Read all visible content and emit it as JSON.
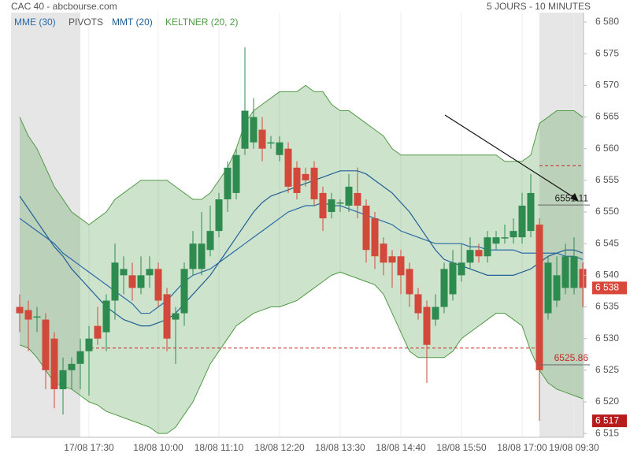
{
  "chart_data": {
    "type": "candlestick",
    "title": "CAC 40 - abcbourse.com",
    "subtitle": "5 JOURS - 10 MINUTES",
    "categories": [
      null,
      null,
      null,
      null,
      null,
      null,
      null,
      null,
      "17/08 17:30",
      null,
      null,
      null,
      null,
      null,
      null,
      null,
      "18/08 10:00",
      null,
      null,
      null,
      null,
      null,
      null,
      "18/08 11:10",
      null,
      null,
      null,
      null,
      null,
      null,
      "18/08 12:20",
      null,
      null,
      null,
      null,
      null,
      null,
      "18/08 13:30",
      null,
      null,
      null,
      null,
      null,
      null,
      "18/08 14:40",
      null,
      null,
      null,
      null,
      null,
      null,
      "18/08 15:50",
      null,
      null,
      null,
      null,
      null,
      null,
      "18/08 17:00",
      null,
      null,
      null,
      null,
      null,
      "19/08 09:30",
      null
    ],
    "open": [
      6535,
      6534.5,
      6533.5,
      6533,
      6530,
      6522,
      6525,
      6526,
      6528,
      6532,
      6531,
      6536,
      6540,
      6540,
      6538,
      6540,
      6541,
      6537,
      6533,
      6534,
      6541,
      6541,
      6544,
      6547,
      6552,
      6553,
      6560,
      6561,
      6563,
      6561,
      6559,
      6560,
      6557,
      6556,
      6557,
      6553,
      6550,
      6551.5,
      6551,
      6553,
      6551,
      6549,
      6545,
      6543,
      6543,
      6541,
      6537,
      6535,
      6533,
      6535,
      6537,
      6540,
      6542,
      6544,
      6543,
      6545,
      6546,
      6546,
      6546,
      6547,
      6548,
      6534,
      6536,
      6538,
      6538,
      6541
    ],
    "high": [
      6537,
      6536,
      6535,
      6534,
      6531,
      6527,
      6527,
      6530,
      6532,
      6535,
      6537,
      6545,
      6543,
      6542,
      6543,
      6543,
      6542,
      6538,
      6535,
      6542,
      6547,
      6550,
      6551,
      6553,
      6558,
      6560,
      6576,
      6568,
      6565,
      6562,
      6562,
      6561,
      6558,
      6557,
      6558,
      6554,
      6553,
      6552,
      6556,
      6557,
      6552,
      6550,
      6546,
      6544,
      6544,
      6542,
      6538,
      6536,
      6537,
      6542,
      6544,
      6545,
      6546,
      6545,
      6547,
      6547,
      6548,
      6549,
      6553,
      6556,
      6549,
      6543,
      6543,
      6545,
      6546,
      6542
    ],
    "low": [
      6531,
      6528,
      6531,
      6522,
      6519,
      6518,
      6522,
      6522,
      6521,
      6529,
      6528,
      6533,
      6537,
      6536,
      6537,
      6538,
      6535,
      6528,
      6526,
      6532,
      6540,
      6540,
      6543,
      6546,
      6550,
      6552,
      6559,
      6560,
      6558,
      6560,
      6558,
      6553,
      6552,
      6554,
      6551,
      6547,
      6549,
      6550,
      6550,
      6549,
      6542,
      6541,
      6540,
      6538,
      6537,
      6535,
      6533,
      6523,
      6532,
      6534,
      6536,
      6539,
      6541,
      6542,
      6542,
      6544,
      6545,
      6545,
      6545,
      6546,
      6517,
      6533,
      6535,
      6537,
      6537,
      6535
    ],
    "close": [
      6534,
      6533,
      6533.5,
      6525,
      6522,
      6525,
      6526,
      6528,
      6530,
      6530,
      6536,
      6542,
      6541,
      6538,
      6540,
      6541,
      6536,
      6530,
      6534,
      6541,
      6545,
      6545,
      6547,
      6552,
      6557,
      6559,
      6566,
      6565,
      6560,
      6561,
      6561,
      6554,
      6553,
      6555,
      6552,
      6549,
      6552,
      6551.5,
      6554,
      6551,
      6544,
      6543,
      6542,
      6542,
      6540,
      6537,
      6534,
      6529,
      6535,
      6541,
      6542,
      6542,
      6544,
      6543,
      6546,
      6546,
      6546,
      6547,
      6551,
      6553,
      6525,
      6542,
      6540,
      6543,
      6543,
      6538
    ],
    "up_color": "#2e8b4f",
    "down_color": "#d2483a",
    "ylim": [
      6514.4,
      6581.5
    ],
    "yticks": [
      {
        "value": 6580,
        "label": "6 580"
      },
      {
        "value": 6575,
        "label": "6 575"
      },
      {
        "value": 6570,
        "label": "6 570"
      },
      {
        "value": 6565,
        "label": "6 565"
      },
      {
        "value": 6560,
        "label": "6 560"
      },
      {
        "value": 6555,
        "label": "6 555"
      },
      {
        "value": 6550,
        "label": "6 550"
      },
      {
        "value": 6545,
        "label": "6 545"
      },
      {
        "value": 6540,
        "label": "6 540"
      },
      {
        "value": 6535,
        "label": "6 535"
      },
      {
        "value": 6530,
        "label": "6 530"
      },
      {
        "value": 6525,
        "label": "6 525"
      },
      {
        "value": 6520,
        "label": "6 520"
      },
      {
        "value": 6515,
        "label": "6 515"
      }
    ],
    "overlays": [
      {
        "name": "MME (30)",
        "color": "#2a6aa8",
        "values": [
          6549,
          6548,
          6547,
          6546,
          6545,
          6543.5,
          6542.5,
          6541.5,
          6540.5,
          6539.5,
          6538.5,
          6537.5,
          6536.5,
          6535.5,
          6534,
          6534,
          6535,
          6536,
          6537.5,
          6539,
          6540,
          6540.5,
          6541,
          6542,
          6543,
          6544,
          6545,
          6546,
          6547,
          6548,
          6549,
          6550,
          6550.5,
          6551,
          6551,
          6551.5,
          6551,
          6551,
          6550.5,
          6550,
          6549.5,
          6549,
          6548.5,
          6548,
          6547,
          6546.5,
          6546,
          6545.5,
          6545,
          6545,
          6545,
          6545,
          6544.5,
          6544.5,
          6544,
          6544,
          6544,
          6544,
          6543.5,
          6543.5,
          6543.5,
          6543.5,
          6543.5,
          6543,
          6543,
          6542.5
        ]
      },
      {
        "name": "MMT (20)",
        "color": "#1f5f96",
        "values": [
          6552.5,
          6550.5,
          6548.5,
          6546.5,
          6544.5,
          6543,
          6541,
          6539.5,
          6538,
          6536.5,
          6535,
          6534,
          6533,
          6532.5,
          6532,
          6532,
          6532.5,
          6533,
          6534,
          6535.5,
          6537,
          6538.5,
          6540,
          6542,
          6544,
          6546,
          6548,
          6550,
          6551.5,
          6552.5,
          6553,
          6553.5,
          6554,
          6554.5,
          6555,
          6555.5,
          6556,
          6556.5,
          6556.5,
          6556.5,
          6556,
          6555,
          6554,
          6553,
          6551.5,
          6550,
          6548,
          6546,
          6544,
          6542.5,
          6542,
          6541.5,
          6541,
          6540.5,
          6540,
          6540,
          6540,
          6540,
          6540.5,
          6541,
          6542,
          6543,
          6543.5,
          6544,
          6544,
          6543.5
        ]
      }
    ],
    "pivots": {
      "name": "PIVOTS",
      "color": "#c62828",
      "levels": [
        6528.5,
        6557.3
      ]
    },
    "keltner": {
      "name": "KELTNER (20, 2)",
      "color": "#4f9a45",
      "upper": [
        6565,
        6562,
        6560,
        6557,
        6554,
        6552,
        6550,
        6549,
        6548,
        6549,
        6550,
        6552,
        6553,
        6554,
        6555,
        6555,
        6555,
        6555,
        6554,
        6553,
        6552,
        6552,
        6553,
        6555,
        6557,
        6560,
        6564,
        6566,
        6567,
        6568,
        6569,
        6569,
        6569,
        6570,
        6569,
        6569,
        6567,
        6566,
        6566,
        6565,
        6564,
        6563,
        6562,
        6560,
        6559,
        6559,
        6559,
        6559,
        6559,
        6559,
        6559,
        6559,
        6559,
        6559,
        6559,
        6559,
        6558,
        6558,
        6558,
        6559,
        6564,
        6565,
        6566,
        6566,
        6566,
        6565
      ],
      "lower": [
        6529,
        6528.5,
        6527,
        6525,
        6523,
        6522.5,
        6522,
        6521,
        6520,
        6519.5,
        6518.5,
        6518,
        6517.5,
        6517,
        6516.5,
        6516,
        6515,
        6515,
        6516,
        6518,
        6520,
        6523,
        6526,
        6528,
        6530,
        6532,
        6533,
        6534,
        6534.5,
        6535,
        6535,
        6535.5,
        6536,
        6537,
        6538,
        6539,
        6540,
        6540.5,
        6540,
        6539.5,
        6539,
        6538.5,
        6537,
        6534,
        6531,
        6528,
        6527,
        6527,
        6527,
        6527,
        6528,
        6530,
        6531,
        6532,
        6533,
        6534,
        6534,
        6533,
        6532,
        6528,
        6525,
        6523,
        6522,
        6521.5,
        6521,
        6520.5
      ]
    },
    "annotations": [
      {
        "value": 6551.11,
        "color": "#222222"
      },
      {
        "value": 6525.86,
        "color": "#c62828"
      }
    ],
    "price_labels": [
      {
        "value": 6538,
        "label": "6 538",
        "color": "#d9473a"
      },
      {
        "value": 6517,
        "label": "6 517",
        "color": "#b71c1c"
      }
    ]
  }
}
